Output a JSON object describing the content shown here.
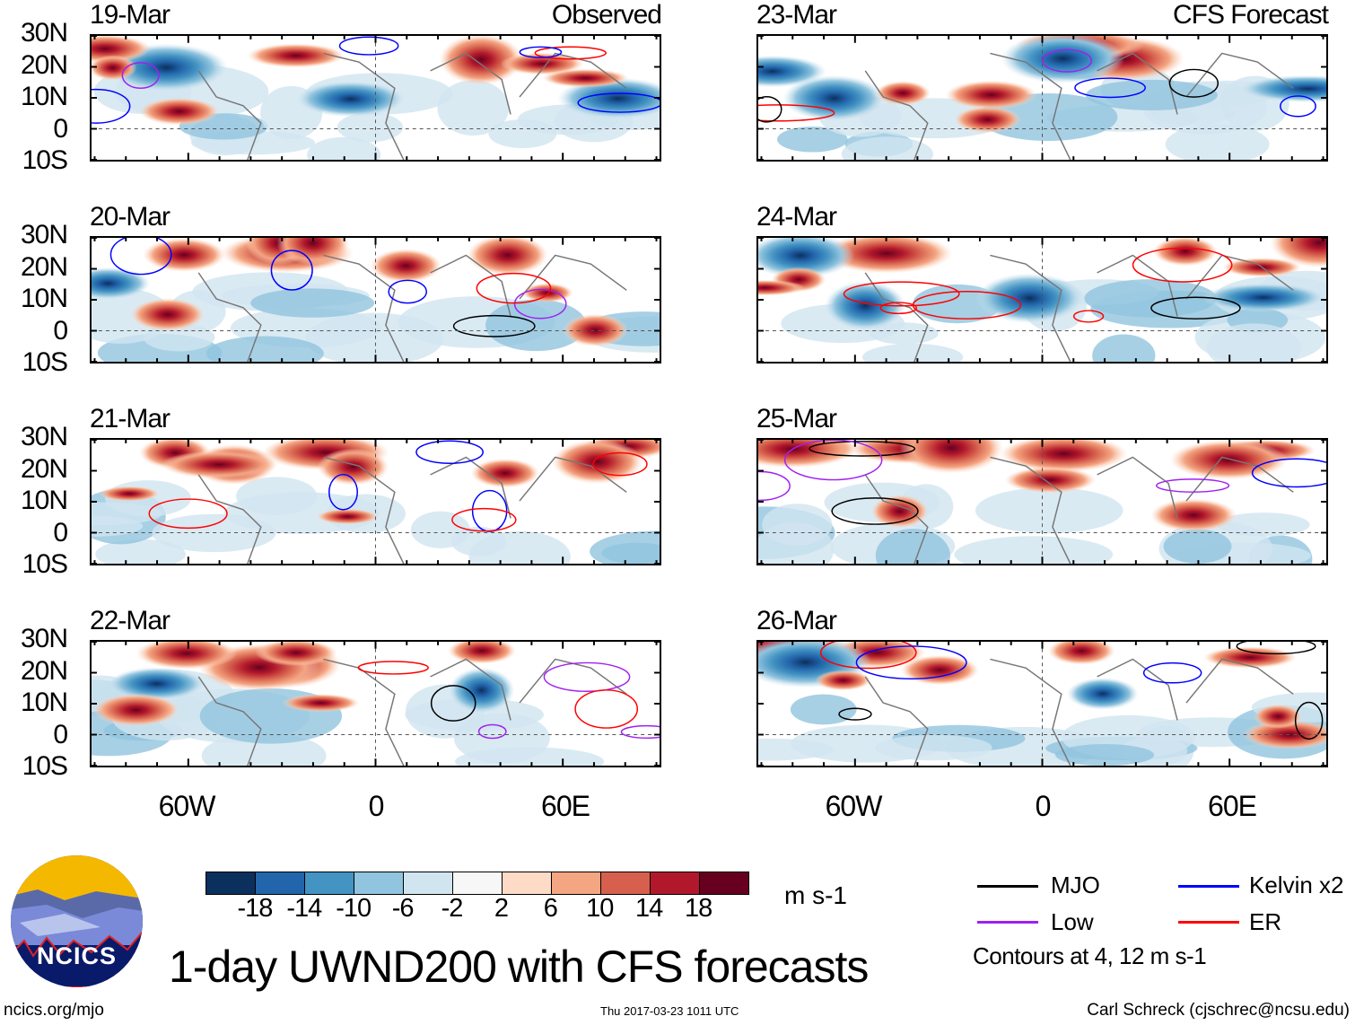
{
  "panels_left": [
    {
      "date": "19-Mar",
      "title": "Observed"
    },
    {
      "date": "20-Mar"
    },
    {
      "date": "21-Mar"
    },
    {
      "date": "22-Mar"
    }
  ],
  "panels_right": [
    {
      "date": "23-Mar",
      "title": "CFS Forecast"
    },
    {
      "date": "24-Mar"
    },
    {
      "date": "25-Mar"
    },
    {
      "date": "26-Mar"
    }
  ],
  "lat_labels": [
    "30N",
    "20N",
    "10N",
    "0",
    "10S"
  ],
  "lon_labels": [
    "60W",
    "0",
    "60E"
  ],
  "colorbar": {
    "colors": [
      "#0b305e",
      "#2265ab",
      "#4393c3",
      "#91c4de",
      "#d1e5f0",
      "#f7f7f7",
      "#fddbc7",
      "#f4a582",
      "#d6604d",
      "#b2182b",
      "#67001f"
    ],
    "ticks": [
      "-18",
      "-14",
      "-10",
      "-6",
      "-2",
      "2",
      "6",
      "10",
      "14",
      "18"
    ],
    "units": "m s-1"
  },
  "legend": {
    "items": [
      {
        "label": "MJO",
        "color": "#000000"
      },
      {
        "label": "Kelvin x2",
        "color": "#0000ff"
      },
      {
        "label": "Low",
        "color": "#a020f0"
      },
      {
        "label": "ER",
        "color": "#ff0000"
      }
    ],
    "note": "Contours at 4, 12 m s-1"
  },
  "title": "1-day UWND200 with CFS forecasts",
  "logo_text": "NCICS",
  "footer": {
    "left": "ncics.org/mjo",
    "center": "Thu 2017-03-23 1011 UTC",
    "right": "Carl Schreck (cjschrec@ncsu.edu)"
  }
}
